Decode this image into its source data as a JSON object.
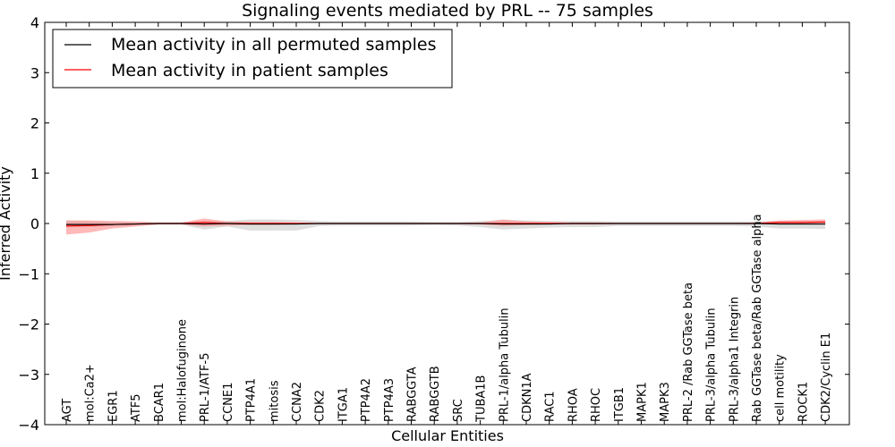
{
  "chart_data": {
    "type": "line",
    "title": "Signaling events mediated by PRL -- 75 samples",
    "xlabel": "Cellular Entities",
    "ylabel": "Inferred Activity",
    "ylim": [
      -4,
      4
    ],
    "yticks": [
      -4,
      -3,
      -2,
      -1,
      0,
      1,
      2,
      3,
      4
    ],
    "ytick_labels": [
      "−4",
      "−3",
      "−2",
      "−1",
      "0",
      "1",
      "2",
      "3",
      "4"
    ],
    "grid": false,
    "legend_position": "top-left",
    "categories": [
      "AGT",
      "mol:Ca2+",
      "EGR1",
      "ATF5",
      "BCAR1",
      "mol:Halofuginone",
      "PRL-1/ATF-5",
      "CCNE1",
      "PTP4A1",
      "mitosis",
      "CCNA2",
      "CDK2",
      "ITGA1",
      "PTP4A2",
      "PTP4A3",
      "RABGGTA",
      "RABGGTB",
      "SRC",
      "TUBA1B",
      "PRL-1/alpha Tubulin",
      "CDKN1A",
      "RAC1",
      "RHOA",
      "RHOC",
      "ITGB1",
      "MAPK1",
      "MAPK3",
      "PRL-2 /Rab GGTase beta",
      "PRL-3/alpha Tubulin",
      "PRL-3/alpha1 Integrin",
      "Rab GGTase beta/Rab GGTase alpha",
      "cell motility",
      "ROCK1",
      "CDK2/Cyclin E1"
    ],
    "series": [
      {
        "name": "Mean activity in all permuted samples",
        "color": "#000000",
        "values": [
          -0.02,
          -0.02,
          -0.02,
          -0.01,
          0,
          0,
          -0.01,
          0,
          -0.01,
          -0.01,
          -0.01,
          0,
          0,
          0,
          0,
          0,
          0,
          0,
          0,
          -0.01,
          -0.01,
          -0.01,
          0,
          0,
          0,
          0,
          0,
          0,
          0,
          0,
          0,
          -0.01,
          -0.01,
          -0.01
        ],
        "band_upper": [
          0.06,
          0.05,
          0.04,
          0.03,
          0.02,
          0.02,
          0.06,
          0.05,
          0.08,
          0.08,
          0.07,
          0.05,
          0.04,
          0.04,
          0.04,
          0.04,
          0.03,
          0.03,
          0.05,
          0.07,
          0.06,
          0.05,
          0.05,
          0.05,
          0.04,
          0.04,
          0.04,
          0.04,
          0.04,
          0.04,
          0.04,
          0.05,
          0.05,
          0.05
        ],
        "band_lower": [
          -0.08,
          -0.07,
          -0.06,
          -0.04,
          -0.02,
          -0.02,
          -0.12,
          -0.06,
          -0.14,
          -0.14,
          -0.14,
          -0.05,
          -0.04,
          -0.04,
          -0.04,
          -0.04,
          -0.03,
          -0.04,
          -0.07,
          -0.12,
          -0.1,
          -0.08,
          -0.07,
          -0.07,
          -0.05,
          -0.05,
          -0.05,
          -0.05,
          -0.05,
          -0.05,
          -0.06,
          -0.1,
          -0.1,
          -0.11
        ],
        "band_color": "#c8c8c8"
      },
      {
        "name": "Mean activity in patient samples",
        "color": "#ff0000",
        "values": [
          -0.05,
          -0.04,
          -0.02,
          -0.01,
          0,
          0,
          0.02,
          0,
          0,
          0,
          0,
          0,
          0,
          0,
          0,
          0,
          0,
          0,
          0,
          0,
          0,
          0,
          0,
          0,
          0,
          0,
          0,
          0,
          0,
          0,
          0,
          0.02,
          0.02,
          0.03
        ],
        "band_upper": [
          0.06,
          0.06,
          0.05,
          0.04,
          0.02,
          0.02,
          0.1,
          0.04,
          0.03,
          0.03,
          0.02,
          0.01,
          0.01,
          0.01,
          0.01,
          0.01,
          0.01,
          0.01,
          0.02,
          0.08,
          0.04,
          0.03,
          0.02,
          0.02,
          0.01,
          0.01,
          0.01,
          0.01,
          0.01,
          0.01,
          0.02,
          0.06,
          0.07,
          0.08
        ],
        "band_lower": [
          -0.22,
          -0.18,
          -0.1,
          -0.06,
          -0.02,
          -0.02,
          -0.06,
          -0.04,
          -0.03,
          -0.03,
          -0.02,
          -0.01,
          -0.01,
          -0.01,
          -0.01,
          -0.01,
          -0.01,
          -0.01,
          -0.02,
          -0.05,
          -0.03,
          -0.02,
          -0.02,
          -0.02,
          -0.01,
          -0.01,
          -0.01,
          -0.01,
          -0.01,
          -0.01,
          -0.01,
          -0.01,
          -0.01,
          -0.01
        ],
        "band_color": "#ff8080"
      }
    ]
  }
}
